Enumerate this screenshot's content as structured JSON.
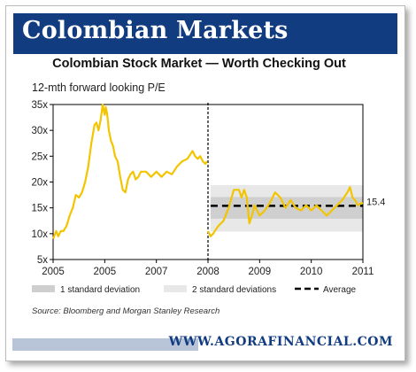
{
  "header": {
    "title": "Colombian Markets"
  },
  "footer": {
    "site": "WWW.AGORAFINANCIAL.COM"
  },
  "source_note": "Source: Bloomberg and Morgan Stanley Research",
  "chart_data": {
    "type": "line",
    "title": "Colombian Stock Market — Worth Checking Out",
    "ylabel": "12-mth forward looking P/E",
    "xlabel": "",
    "x_tick_labels": [
      "2005",
      "2005",
      "2007",
      "2008",
      "2009",
      "2010",
      "2011"
    ],
    "x_ticks": [
      2004.0,
      2005.0,
      2006.0,
      2007.0,
      2008.0,
      2009.0,
      2010.0
    ],
    "y_tick_labels": [
      "5x",
      "10x",
      "15x",
      "20x",
      "25x",
      "30x",
      "35x"
    ],
    "y_ticks": [
      5,
      10,
      15,
      20,
      25,
      30,
      35
    ],
    "xlim": [
      2004.0,
      2010.0
    ],
    "ylim": [
      5,
      35
    ],
    "grid": false,
    "legend_position": "bottom",
    "average": 15.4,
    "average_label": "15.4",
    "band_1sd": [
      12.9,
      17.1
    ],
    "band_2sd": [
      10.4,
      19.4
    ],
    "band_start": 2007.05,
    "break_x": 2007.0,
    "legend": {
      "sd1": "1 standard deviation",
      "sd2": "2 standard deviations",
      "avg": "Average"
    },
    "colors": {
      "line": "#f2c500",
      "sd1": "#cfcfcf",
      "sd2": "#e8e8e8",
      "average": "#000000",
      "axis": "#000000"
    },
    "series": [
      {
        "x": [
          2004.0,
          2004.06,
          2004.1,
          2004.15,
          2004.2,
          2004.26,
          2004.32,
          2004.38,
          2004.44,
          2004.5,
          2004.56,
          2004.62,
          2004.68,
          2004.74,
          2004.8,
          2004.84,
          2004.88,
          2004.92,
          2004.96,
          2005.0,
          2005.02,
          2005.05,
          2005.08,
          2005.12,
          2005.16,
          2005.2,
          2005.25,
          2005.3,
          2005.35,
          2005.4,
          2005.45,
          2005.5,
          2005.55,
          2005.6,
          2005.65,
          2005.7,
          2005.8,
          2005.9,
          2006.0,
          2006.1,
          2006.2,
          2006.3,
          2006.4,
          2006.5,
          2006.6,
          2006.7,
          2006.75,
          2006.8,
          2006.85,
          2006.9,
          2006.95,
          2006.98
        ],
        "y": [
          9,
          10.5,
          9.5,
          10.5,
          10.5,
          11.5,
          13.5,
          15,
          17.5,
          17,
          18,
          20,
          23,
          27.5,
          31,
          31.5,
          30,
          32,
          35,
          33,
          34.5,
          33,
          30,
          28,
          27,
          25,
          24,
          21,
          18.5,
          18,
          20.5,
          21.5,
          22,
          20.5,
          21,
          22,
          22,
          21,
          22,
          21,
          22,
          21.5,
          23,
          24,
          24.5,
          26,
          25,
          24.5,
          25,
          24,
          23.5,
          24
        ]
      },
      {
        "x": [
          2007.0,
          2007.05,
          2007.1,
          2007.15,
          2007.2,
          2007.3,
          2007.4,
          2007.5,
          2007.6,
          2007.65,
          2007.7,
          2007.75,
          2007.8,
          2007.85,
          2007.9,
          2008.0,
          2008.1,
          2008.2,
          2008.3,
          2008.4,
          2008.5,
          2008.6,
          2008.7,
          2008.8,
          2008.9,
          2009.0,
          2009.1,
          2009.2,
          2009.3,
          2009.4,
          2009.5,
          2009.6,
          2009.7,
          2009.75,
          2009.8,
          2009.85,
          2009.9,
          2009.95,
          2010.0
        ],
        "y": [
          10.5,
          9.5,
          10,
          10.8,
          11.5,
          12.5,
          15,
          18.5,
          18.5,
          17,
          18.5,
          17,
          12,
          13.5,
          15.5,
          13.5,
          14.5,
          16,
          18,
          17,
          15,
          16.5,
          15,
          14.5,
          15.5,
          14.5,
          15.5,
          14.5,
          13.5,
          14.5,
          15.5,
          16.5,
          18,
          19,
          17,
          16.5,
          15.5,
          15.8,
          16
        ]
      }
    ]
  }
}
